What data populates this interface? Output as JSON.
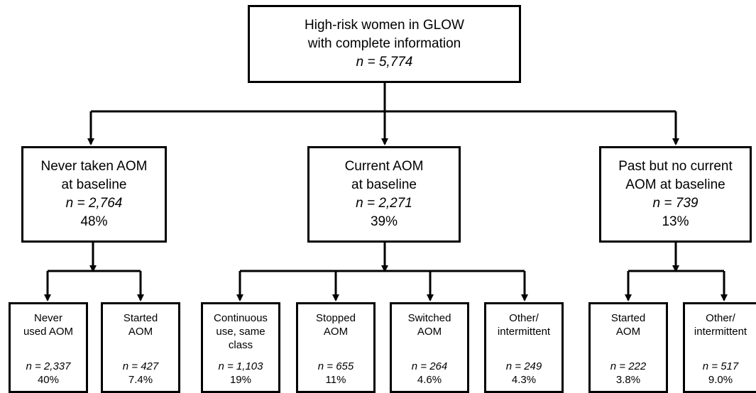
{
  "root": {
    "line1": "High-risk women in GLOW",
    "line2": "with complete information",
    "n": "n = 5,774"
  },
  "groups": [
    {
      "line1": "Never taken AOM",
      "line2": "at baseline",
      "n": "n = 2,764",
      "pct": "48%"
    },
    {
      "line1": "Current AOM",
      "line2": "at baseline",
      "n": "n = 2,271",
      "pct": "39%"
    },
    {
      "line1": "Past but no current",
      "line2": "AOM at baseline",
      "n": "n = 739",
      "pct": "13%"
    }
  ],
  "leaves": [
    {
      "lines": [
        "Never",
        "used AOM"
      ],
      "n": "n = 2,337",
      "pct": "40%"
    },
    {
      "lines": [
        "Started",
        "AOM"
      ],
      "n": "n = 427",
      "pct": "7.4%"
    },
    {
      "lines": [
        "Continuous",
        "use, same",
        "class"
      ],
      "n": "n = 1,103",
      "pct": "19%"
    },
    {
      "lines": [
        "Stopped",
        "AOM"
      ],
      "n": "n = 655",
      "pct": "11%"
    },
    {
      "lines": [
        "Switched",
        "AOM"
      ],
      "n": "n = 264",
      "pct": "4.6%"
    },
    {
      "lines": [
        "Other/",
        "intermittent"
      ],
      "n": "n = 249",
      "pct": "4.3%"
    },
    {
      "lines": [
        "Started",
        "AOM"
      ],
      "n": "n = 222",
      "pct": "3.8%"
    },
    {
      "lines": [
        "Other/",
        "intermittent"
      ],
      "n": "n = 517",
      "pct": "9.0%"
    }
  ]
}
